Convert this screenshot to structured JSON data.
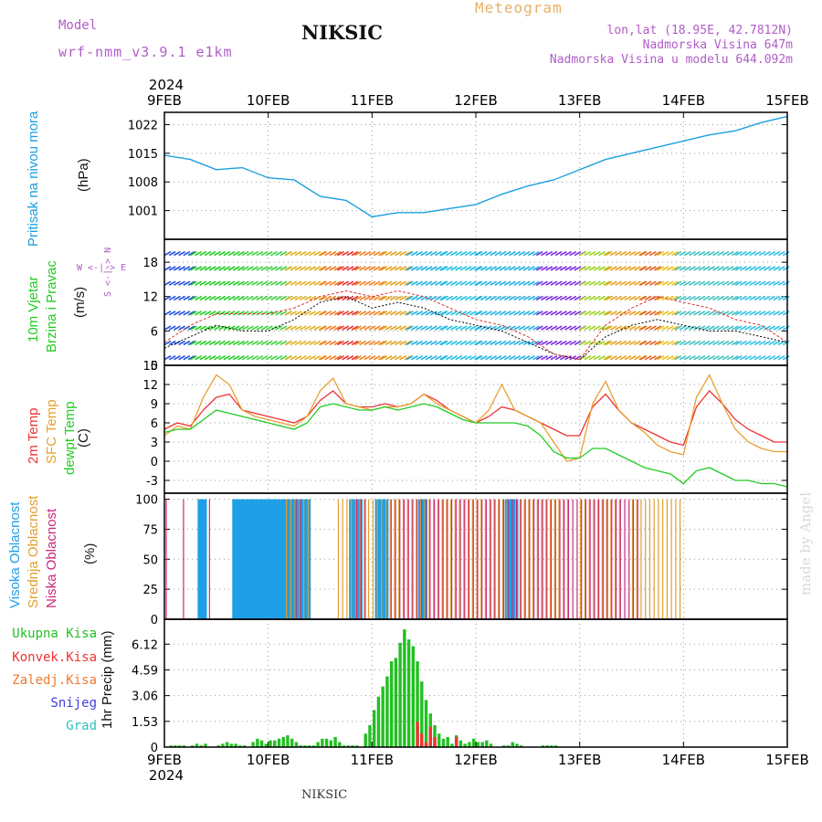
{
  "header": {
    "model_label": "Model",
    "model_name": "wrf-nmm_v3.9.1 e1km",
    "station_title": "NIKSIC",
    "meteogram_label": "Meteogram",
    "lonlat": "lon,lat (18.95E, 42.7812N)",
    "elevation": "Nadmorska Visina 647m",
    "model_elevation": "Nadmorska Visina u modelu 644.092m"
  },
  "footer": {
    "station": "NIKSIC",
    "credit": "made by Angel"
  },
  "time_axis": {
    "year": "2024",
    "ticks": [
      "9FEB",
      "10FEB",
      "11FEB",
      "12FEB",
      "13FEB",
      "14FEB",
      "15FEB"
    ]
  },
  "colors": {
    "pressure": "#1ba0e0",
    "wind_black": "#000000",
    "wind_red": "#e03030",
    "t2m": "#ee3333",
    "tsfc": "#e8a030",
    "dewpt": "#22cc22",
    "high_cloud": "#1e9fe6",
    "mid_cloud": "#e0a030",
    "low_cloud": "#cc2a7a",
    "total_rain": "#22c022",
    "conv_rain": "#ee3333",
    "frz_rain": "#f07a30",
    "snow": "#4040e0",
    "graupel": "#30c0c0",
    "label_purple": "#b05cc8"
  },
  "panels": {
    "pressure": {
      "label": "Pritisak na nivou mora",
      "unit": "(hPa)",
      "yticks": [
        "1001",
        "1008",
        "1015",
        "1022"
      ],
      "ylim": [
        994,
        1025
      ]
    },
    "wind": {
      "label_line1": "10m Vjetar",
      "label_line2": "Brzina i Pravac",
      "unit": "(m/s)",
      "compass": "W <-|-> E",
      "compass2": "S <-|-> N",
      "yticks": [
        "0",
        "6",
        "12",
        "18"
      ],
      "ylim": [
        0,
        22
      ]
    },
    "temp": {
      "label_t2m": "2m Temp",
      "label_sfc": "SFC Temp",
      "label_dew": "dewpt Temp",
      "unit": "(C)",
      "yticks": [
        "-3",
        "0",
        "3",
        "6",
        "9",
        "12",
        "15"
      ],
      "ylim": [
        -5,
        15
      ]
    },
    "cloud": {
      "label_high": "Visoka Oblacnost",
      "label_mid": "Srednja Oblacnost",
      "label_low": "Niska Oblacnost",
      "unit": "(%)",
      "yticks": [
        "0",
        "25",
        "50",
        "75",
        "100"
      ],
      "ylim": [
        0,
        105
      ]
    },
    "precip": {
      "legend": [
        "Ukupna Kisa",
        "Konvek.Kisa",
        "Zaledj.Kisa",
        "Snijeg",
        "Grad"
      ],
      "ylabel": "1hr Precip (mm)",
      "yticks": [
        "0",
        "1.53",
        "3.06",
        "4.59",
        "6.12"
      ],
      "ylim": [
        0,
        7.6
      ]
    }
  },
  "chart_data": [
    {
      "type": "line",
      "title": "Pritisak na nivou mora",
      "ylabel": "(hPa)",
      "ylim": [
        994,
        1025
      ],
      "x_unit": "hours from 9FEB 00UTC",
      "x": [
        0,
        6,
        12,
        18,
        24,
        30,
        36,
        42,
        48,
        54,
        60,
        66,
        72,
        78,
        84,
        90,
        96,
        102,
        108,
        114,
        120,
        126,
        132,
        138,
        144
      ],
      "values": [
        1014.5,
        1013.5,
        1011,
        1011.5,
        1009,
        1008.5,
        1004.5,
        1003.5,
        999.5,
        1000.5,
        1000.5,
        1001.5,
        1002.5,
        1005,
        1007,
        1008.5,
        1011,
        1013.5,
        1015,
        1016.5,
        1018,
        1019.5,
        1020.5,
        1022.5,
        1024
      ]
    },
    {
      "type": "line",
      "title": "10m Vjetar Brzina i Pravac",
      "ylabel": "(m/s)",
      "ylim": [
        0,
        22
      ],
      "x": [
        0,
        6,
        12,
        18,
        24,
        30,
        36,
        42,
        48,
        54,
        60,
        66,
        72,
        78,
        84,
        90,
        96,
        102,
        108,
        114,
        120,
        126,
        132,
        138,
        144
      ],
      "series": [
        {
          "name": "",
          "values": [
            3,
            5,
            7,
            6,
            6,
            8,
            11,
            12,
            10,
            11,
            10,
            8,
            7,
            6,
            4,
            2,
            1,
            5,
            7,
            8,
            7,
            6,
            6,
            5,
            4
          ]
        },
        {
          "name": "",
          "values": [
            4,
            7,
            9,
            9,
            9,
            10,
            12,
            13,
            12,
            13,
            12,
            10,
            8,
            7,
            5,
            2,
            1,
            7,
            10,
            12,
            11,
            10,
            8,
            7,
            4
          ]
        }
      ]
    },
    {
      "type": "line",
      "title": "2m Temp / SFC Temp / dewpt Temp",
      "ylabel": "(C)",
      "ylim": [
        -5,
        15
      ],
      "x": [
        0,
        3,
        6,
        9,
        12,
        15,
        18,
        21,
        24,
        27,
        30,
        33,
        36,
        39,
        42,
        45,
        48,
        51,
        54,
        57,
        60,
        63,
        66,
        69,
        72,
        75,
        78,
        81,
        84,
        87,
        90,
        93,
        96,
        99,
        102,
        105,
        108,
        111,
        114,
        117,
        120,
        123,
        126,
        129,
        132,
        135,
        138,
        141,
        144
      ],
      "series": [
        {
          "name": "2m Temp",
          "values": [
            5,
            6,
            5.5,
            8,
            10,
            10.5,
            8,
            7.5,
            7,
            6.5,
            6,
            7,
            9.5,
            11,
            9,
            8.5,
            8.5,
            9,
            8.5,
            9,
            10.5,
            9.5,
            8,
            7,
            6,
            7,
            8.5,
            8,
            7,
            6,
            5,
            4,
            4,
            8.5,
            10.5,
            8,
            6,
            5,
            4,
            3,
            2.5,
            8.5,
            11,
            9,
            6.5,
            5,
            4,
            3,
            3
          ]
        },
        {
          "name": "SFC Temp",
          "values": [
            4,
            5.5,
            5,
            10,
            13.5,
            12,
            8,
            7,
            6.5,
            6,
            5.5,
            7,
            11,
            13,
            9,
            8.5,
            8,
            8.5,
            8.5,
            9,
            10.5,
            9,
            8,
            7,
            6,
            8,
            12,
            8,
            7,
            6,
            3,
            0,
            0.5,
            9,
            12.5,
            8,
            6,
            4.5,
            2.5,
            1.5,
            1,
            10,
            13.5,
            9,
            5,
            3,
            2,
            1.5,
            1.5
          ]
        },
        {
          "name": "dewpt Temp",
          "values": [
            4.5,
            5,
            5,
            6.5,
            8,
            7.5,
            7,
            6.5,
            6,
            5.5,
            5,
            6,
            8.5,
            9,
            8.5,
            8,
            8,
            8.5,
            8,
            8.5,
            9,
            8.5,
            7.5,
            6.5,
            6,
            6,
            6,
            6,
            5.5,
            4,
            1.5,
            0.5,
            0.5,
            2,
            2,
            1,
            0,
            -1,
            -1.5,
            -2,
            -3.5,
            -1.5,
            -1,
            -2,
            -3,
            -3,
            -3.5,
            -3.5,
            -4
          ]
        }
      ]
    },
    {
      "type": "bar",
      "title": "Oblacnost",
      "ylabel": "(%)",
      "ylim": [
        0,
        100
      ],
      "x_unit": "hours from 9FEB 00UTC",
      "series": [
        {
          "name": "Visoka Oblacnost",
          "ranges_full": [
            [
              8,
              10
            ],
            [
              16,
              34
            ],
            [
              43,
              46
            ],
            [
              49,
              52
            ],
            [
              59,
              61
            ],
            [
              79,
              82
            ]
          ]
        },
        {
          "name": "Srednja Oblacnost",
          "ranges_full": [
            [
              28,
              34
            ],
            [
              40,
              80
            ],
            [
              81,
              94
            ],
            [
              96,
              106
            ],
            [
              108,
              120
            ]
          ]
        },
        {
          "name": "Niska Oblacnost",
          "ranges_full": [
            [
              0,
              1
            ],
            [
              4,
              5
            ],
            [
              10,
              11
            ],
            [
              30,
              32
            ],
            [
              44,
              47
            ],
            [
              52,
              110
            ]
          ]
        }
      ]
    },
    {
      "type": "bar",
      "title": "1hr Precip",
      "ylabel": "1hr Precip (mm)",
      "ylim": [
        0,
        7.6
      ],
      "x_unit": "hours from 9FEB 00UTC",
      "series": [
        {
          "name": "Ukupna Kisa",
          "values": [
            0,
            0.1,
            0.1,
            0.1,
            0.1,
            0,
            0.1,
            0.2,
            0.1,
            0.2,
            0,
            0,
            0.1,
            0.2,
            0.3,
            0.2,
            0.2,
            0.1,
            0.1,
            0,
            0.3,
            0.5,
            0.4,
            0.2,
            0.4,
            0.4,
            0.5,
            0.6,
            0.7,
            0.5,
            0.3,
            0.1,
            0.1,
            0.1,
            0.1,
            0.3,
            0.5,
            0.5,
            0.4,
            0.6,
            0.3,
            0.1,
            0.1,
            0.1,
            0.1,
            0,
            0.8,
            1.3,
            2.2,
            3,
            3.6,
            4.2,
            5.1,
            5.3,
            6.2,
            7,
            6.4,
            6,
            5.1,
            3.9,
            2.8,
            2,
            1.3,
            0.8,
            0.5,
            0.6,
            0.2,
            0.7,
            0.4,
            0.2,
            0.3,
            0.5,
            0.3,
            0.3,
            0.4,
            0.2,
            0,
            0,
            0.1,
            0.1,
            0.3,
            0.2,
            0.1,
            0,
            0,
            0,
            0,
            0.1,
            0.1,
            0.1,
            0.1,
            0,
            0,
            0,
            0,
            0,
            0,
            0,
            0,
            0,
            0,
            0,
            0,
            0,
            0,
            0,
            0,
            0,
            0,
            0,
            0,
            0,
            0,
            0,
            0,
            0,
            0,
            0,
            0,
            0,
            0,
            0,
            0,
            0,
            0,
            0,
            0,
            0,
            0,
            0,
            0,
            0,
            0,
            0,
            0,
            0,
            0,
            0,
            0,
            0,
            0,
            0,
            0,
            0,
            0,
            0,
            0
          ]
        },
        {
          "name": "Konvek.Kisa",
          "values": [
            0,
            0,
            0,
            0,
            0,
            0,
            0,
            0,
            0,
            0,
            0,
            0,
            0,
            0,
            0,
            0,
            0,
            0,
            0,
            0,
            0,
            0,
            0,
            0,
            0,
            0,
            0,
            0,
            0,
            0,
            0,
            0,
            0,
            0,
            0,
            0,
            0,
            0,
            0,
            0,
            0,
            0,
            0,
            0,
            0,
            0,
            0,
            0,
            0,
            0,
            0,
            0,
            0,
            0,
            0,
            0,
            0,
            0,
            1.5,
            0.8,
            0.3,
            1.2,
            0.6,
            0,
            0,
            0,
            0,
            0.6,
            0,
            0,
            0,
            0,
            0,
            0,
            0,
            0,
            0,
            0,
            0,
            0,
            0,
            0,
            0,
            0,
            0,
            0,
            0,
            0,
            0,
            0,
            0,
            0,
            0,
            0,
            0,
            0,
            0,
            0,
            0,
            0,
            0,
            0,
            0,
            0,
            0,
            0,
            0,
            0,
            0,
            0,
            0,
            0,
            0,
            0,
            0,
            0,
            0,
            0,
            0,
            0,
            0,
            0,
            0,
            0,
            0,
            0,
            0,
            0,
            0,
            0,
            0,
            0,
            0,
            0,
            0,
            0,
            0,
            0,
            0,
            0,
            0,
            0,
            0,
            0
          ]
        }
      ]
    }
  ]
}
